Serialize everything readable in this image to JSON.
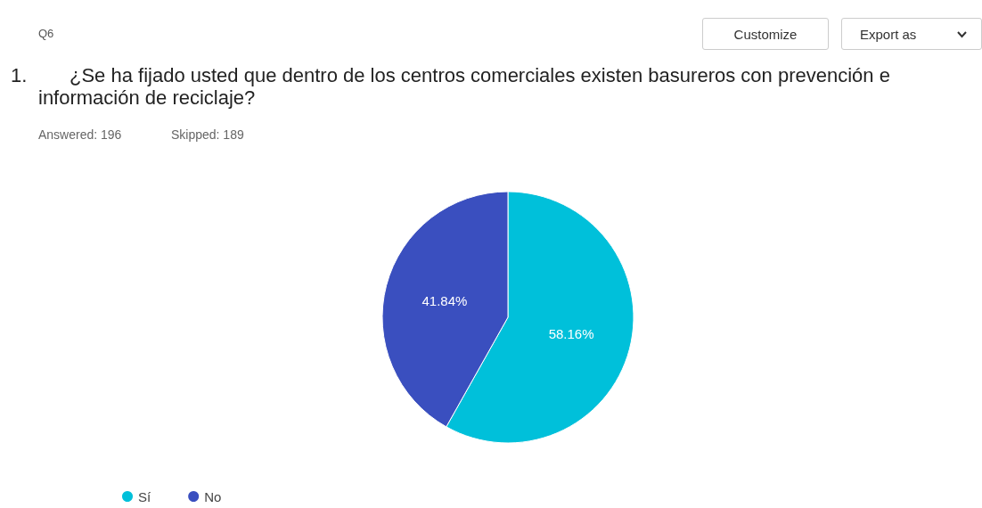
{
  "chart_data": {
    "type": "pie",
    "title": "¿Se ha fijado usted que dentro de los centros comerciales existen basureros con prevención e información de reciclaje?",
    "annotations": [
      "Q6",
      "Customize",
      "Export as",
      "1.",
      "Answered: 196",
      "Skipped: 189"
    ],
    "categories": [
      "Sí",
      "No"
    ],
    "values": [
      58.16,
      41.84
    ],
    "value_labels": [
      "58.16%",
      "41.84%"
    ],
    "colors": [
      "#00c0da",
      "#3a4fbf"
    ],
    "legend": "bottom left"
  }
}
